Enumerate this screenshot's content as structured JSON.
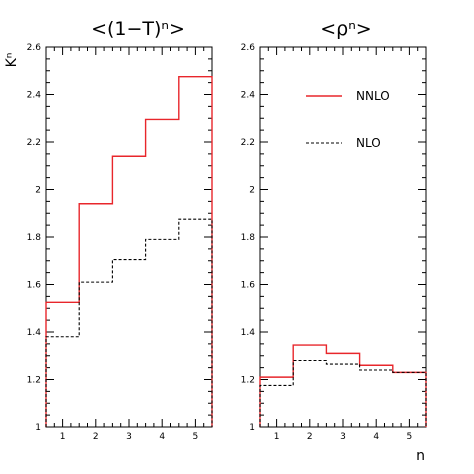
{
  "chart_data": [
    {
      "type": "line",
      "step": true,
      "title": "<(1−T)ⁿ>",
      "ylabel": "Kⁿ",
      "xlabel": "",
      "xlim": [
        0.5,
        5.5
      ],
      "ylim": [
        1.0,
        2.6
      ],
      "xticks": [
        1,
        2,
        3,
        4,
        5
      ],
      "yticks": [
        1,
        1.2,
        1.4,
        1.6,
        1.8,
        2,
        2.2,
        2.4,
        2.6
      ],
      "ytick_labels": [
        "1",
        "1.2",
        "1.4",
        "1.6",
        "1.8",
        "2",
        "2.2",
        "2.4",
        "2.6"
      ],
      "x": [
        1,
        2,
        3,
        4,
        5
      ],
      "series": [
        {
          "name": "NNLO",
          "color": "#e8262b",
          "style": "solid",
          "values": [
            1.525,
            1.94,
            2.14,
            2.295,
            2.475
          ]
        },
        {
          "name": "NLO",
          "color": "#000000",
          "style": "dashed",
          "values": [
            1.38,
            1.61,
            1.705,
            1.79,
            1.875
          ]
        }
      ]
    },
    {
      "type": "line",
      "step": true,
      "title": "<ρⁿ>",
      "xlabel": "n",
      "ylabel": "",
      "xlim": [
        0.5,
        5.5
      ],
      "ylim": [
        1.0,
        2.6
      ],
      "xticks": [
        1,
        2,
        3,
        4,
        5
      ],
      "yticks": [
        1,
        1.2,
        1.4,
        1.6,
        1.8,
        2,
        2.2,
        2.4,
        2.6
      ],
      "ytick_labels": [
        "1",
        "1.2",
        "1.4",
        "1.6",
        "1.8",
        "2",
        "2.2",
        "2.4",
        "2.6"
      ],
      "x": [
        1,
        2,
        3,
        4,
        5
      ],
      "series": [
        {
          "name": "NNLO",
          "color": "#e8262b",
          "style": "solid",
          "values": [
            1.21,
            1.345,
            1.31,
            1.26,
            1.23
          ]
        },
        {
          "name": "NLO",
          "color": "#000000",
          "style": "dashed",
          "values": [
            1.175,
            1.28,
            1.265,
            1.24,
            1.23
          ]
        }
      ],
      "legend": {
        "placement": "top-right",
        "entries": [
          {
            "label": "NNLO",
            "color": "#e8262b",
            "style": "solid"
          },
          {
            "label": "NLO",
            "color": "#000000",
            "style": "dashed"
          }
        ]
      }
    }
  ]
}
